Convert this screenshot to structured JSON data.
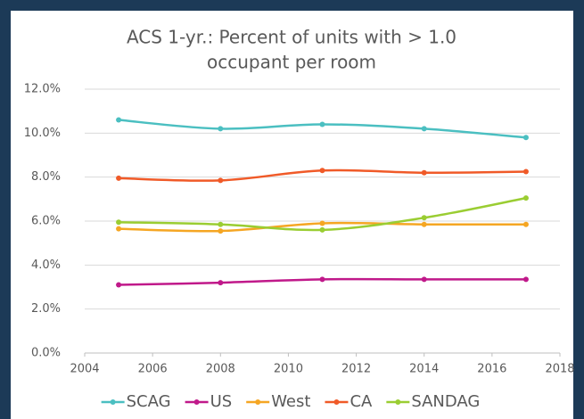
{
  "chart_data": {
    "type": "line",
    "title": [
      "ACS 1-yr.: Percent of units with > 1.0",
      "occupant per room"
    ],
    "x": [
      2005,
      2008,
      2011,
      2014,
      2017
    ],
    "xlim": [
      2004,
      2018
    ],
    "xticks": [
      2004,
      2006,
      2008,
      2010,
      2012,
      2014,
      2016,
      2018
    ],
    "ylim": [
      0,
      12
    ],
    "yticks": [
      {
        "value": 0,
        "label": "0.0%"
      },
      {
        "value": 2,
        "label": "2.0%"
      },
      {
        "value": 4,
        "label": "4.0%"
      },
      {
        "value": 6,
        "label": "6.0%"
      },
      {
        "value": 8,
        "label": "8.0%"
      },
      {
        "value": 10,
        "label": "10.0%"
      },
      {
        "value": 12,
        "label": "12.0%"
      }
    ],
    "grid": true,
    "smooth": true,
    "legend": "bottom",
    "series": [
      {
        "name": "SCAG",
        "color": "#4bbfc1",
        "values": [
          10.6,
          10.2,
          10.4,
          10.2,
          9.8
        ]
      },
      {
        "name": "US",
        "color": "#c0198a",
        "values": [
          3.1,
          3.2,
          3.35,
          3.35,
          3.35
        ]
      },
      {
        "name": "West",
        "color": "#f5a623",
        "values": [
          5.65,
          5.55,
          5.9,
          5.85,
          5.85
        ]
      },
      {
        "name": "CA",
        "color": "#f05a28",
        "values": [
          7.95,
          7.85,
          8.3,
          8.2,
          8.25
        ]
      },
      {
        "name": "SANDAG",
        "color": "#9acd32",
        "values": [
          5.95,
          5.85,
          5.6,
          6.15,
          7.05
        ]
      }
    ]
  }
}
